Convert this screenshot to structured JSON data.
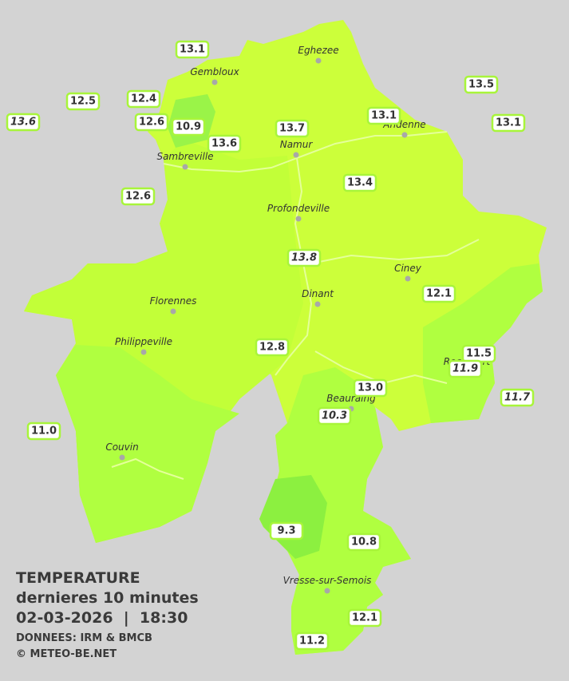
{
  "legend": {
    "title": "TEMPERATURE",
    "subtitle": "dernieres 10 minutes",
    "datetime": "02-03-2026  |  18:30",
    "source": "DONNEES: IRM & BMCB",
    "copyright": "© METEO-BE.NET"
  },
  "towns": [
    "Eghezee",
    "Gembloux",
    "Andenne",
    "Namur",
    "Sambreville",
    "Profondeville",
    "Ciney",
    "Dinant",
    "Florennes",
    "Philippeville",
    "Beauraing",
    "Rochefort",
    "Couvin",
    "Vresse-sur-Semois"
  ],
  "temperatures": [
    "13.1",
    "12.5",
    "13.6",
    "12.4",
    "12.6",
    "10.9",
    "13.6",
    "13.7",
    "13.1",
    "13.5",
    "13.1",
    "12.6",
    "13.4",
    "13.8",
    "12.1",
    "12.8",
    "11.5",
    "11.9",
    "11.7",
    "13.0",
    "10.3",
    "11.0",
    "9.3",
    "10.8",
    "12.1",
    "11.2"
  ]
}
